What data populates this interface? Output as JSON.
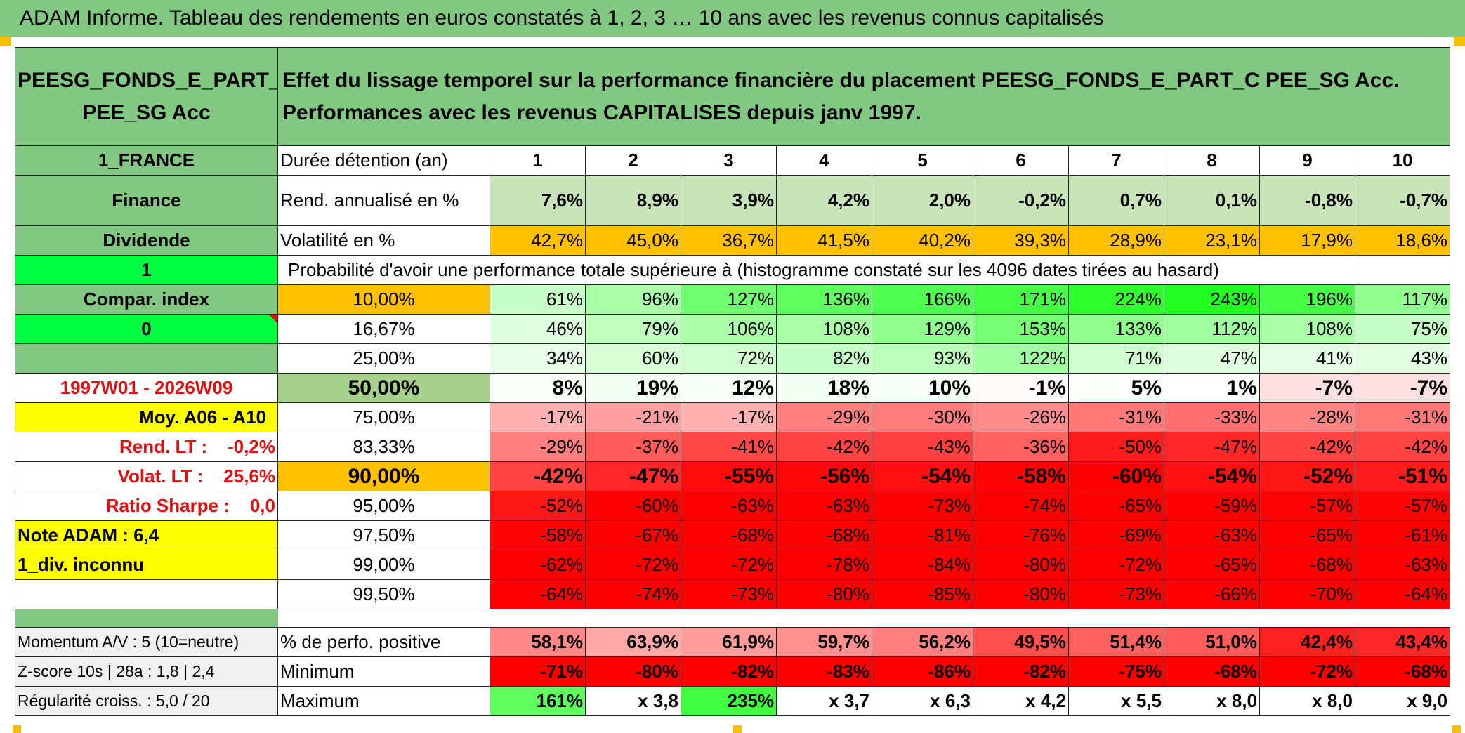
{
  "title": "ADAM Informe. Tableau des rendements en euros constatés à 1, 2, 3 … 10 ans avec les revenus connus capitalisés",
  "header": {
    "fund": "PEESG_FONDS_E_PART_C PEE_SG Acc",
    "description": "Effet du lissage temporel sur la performance financière du placement PEESG_FONDS_E_PART_C PEE_SG Acc. Performances avec les revenus CAPITALISES depuis janv 1997."
  },
  "left": {
    "country": "1_FRANCE",
    "sector": "Finance",
    "dividend": "Dividende",
    "one": "1",
    "compar": "Compar. index",
    "zero": "0",
    "period": "1997W01 - 2026W09",
    "moy": "Moy. A06 - A10",
    "rend_lt": "Rend. LT :    -0,2%",
    "volat_lt": "Volat. LT :    25,6%",
    "sharpe": "Ratio Sharpe :    0,0",
    "note": "Note ADAM : 6,4",
    "div": "1_div. inconnu",
    "momentum": "Momentum A/V : 5 (10=neutre)",
    "zscore": "Z-score 10s | 28a : 1,8 | 2,4",
    "regularite": "Régularité croiss. : 5,0 / 20"
  },
  "labels": {
    "duree": "Durée détention (an)",
    "rend": "Rend. annualisé en %",
    "volat": "Volatilité en %",
    "proba": "Probabilité d'avoir une performance totale supérieure à (histogramme constaté sur les 4096 dates tirées au hasard)",
    "pos": "% de perfo. positive",
    "min": "Minimum",
    "max": "Maximum"
  },
  "years": [
    "1",
    "2",
    "3",
    "4",
    "5",
    "6",
    "7",
    "8",
    "9",
    "10"
  ],
  "rend": [
    "7,6%",
    "8,9%",
    "3,9%",
    "4,2%",
    "2,0%",
    "-0,2%",
    "0,7%",
    "0,1%",
    "-0,8%",
    "-0,7%"
  ],
  "volat": [
    "42,7%",
    "45,0%",
    "36,7%",
    "41,5%",
    "40,2%",
    "39,3%",
    "28,9%",
    "23,1%",
    "17,9%",
    "18,6%"
  ],
  "volat_colors": [
    "#ffc000",
    "#ffc000",
    "#ffc000",
    "#ffc000",
    "#ffc000",
    "#ffc000",
    "#ffc000",
    "#ffc000",
    "#ffc000",
    "#ffc000"
  ],
  "rend_colors": [
    "#c8e4b8",
    "#c8e4b8",
    "#c8e4b8",
    "#c8e4b8",
    "#c8e4b8",
    "#c8e4b8",
    "#c8e4b8",
    "#c8e4b8",
    "#c8e4b8",
    "#c8e4b8"
  ],
  "percentiles": [
    {
      "label": "10,00%",
      "label_bg": "#ffc000",
      "bold": false,
      "values": [
        "61%",
        "96%",
        "127%",
        "136%",
        "166%",
        "171%",
        "224%",
        "243%",
        "196%",
        "117%"
      ],
      "colors": [
        "#c8ffc8",
        "#a8ffa8",
        "#70ff70",
        "#60ff60",
        "#50ff50",
        "#48ff48",
        "#30ff30",
        "#20ff20",
        "#48ff48",
        "#90ff90"
      ]
    },
    {
      "label": "16,67%",
      "label_bg": "#ffffff",
      "bold": false,
      "values": [
        "46%",
        "79%",
        "106%",
        "108%",
        "129%",
        "153%",
        "133%",
        "112%",
        "108%",
        "75%"
      ],
      "colors": [
        "#e0ffe0",
        "#c0ffc0",
        "#a8ffa8",
        "#a8ffa8",
        "#90ff90",
        "#78ff78",
        "#90ff90",
        "#a0ffa0",
        "#a8ffa8",
        "#c8ffc8"
      ]
    },
    {
      "label": "25,00%",
      "label_bg": "#ffffff",
      "bold": false,
      "values": [
        "34%",
        "60%",
        "72%",
        "82%",
        "93%",
        "122%",
        "71%",
        "47%",
        "41%",
        "43%"
      ],
      "colors": [
        "#eaffea",
        "#d8ffd8",
        "#d0ffd0",
        "#c8ffc8",
        "#bcffbc",
        "#a0ffa0",
        "#d0ffd0",
        "#e0ffe0",
        "#e6ffe6",
        "#e4ffe4"
      ]
    },
    {
      "label": "50,00%",
      "label_bg": "#a8d08d",
      "bold": true,
      "values": [
        "8%",
        "19%",
        "12%",
        "18%",
        "10%",
        "-1%",
        "5%",
        "1%",
        "-7%",
        "-7%"
      ],
      "colors": [
        "#fafffa",
        "#f4fff4",
        "#f8fff8",
        "#f4fff4",
        "#f8fff8",
        "#fffafa",
        "#fcfffc",
        "#fefffe",
        "#ffe0e0",
        "#ffe0e0"
      ]
    },
    {
      "label": "75,00%",
      "label_bg": "#ffffff",
      "bold": false,
      "values": [
        "-17%",
        "-21%",
        "-17%",
        "-29%",
        "-30%",
        "-26%",
        "-31%",
        "-33%",
        "-28%",
        "-31%"
      ],
      "colors": [
        "#ffb0b0",
        "#ffa0a0",
        "#ffb0b0",
        "#ff8080",
        "#ff7c7c",
        "#ff8c8c",
        "#ff7878",
        "#ff7070",
        "#ff8484",
        "#ff7878"
      ]
    },
    {
      "label": "83,33%",
      "label_bg": "#ffffff",
      "bold": false,
      "values": [
        "-29%",
        "-37%",
        "-41%",
        "-42%",
        "-43%",
        "-36%",
        "-50%",
        "-47%",
        "-42%",
        "-42%"
      ],
      "colors": [
        "#ff8080",
        "#ff5c5c",
        "#ff4848",
        "#ff4444",
        "#ff4040",
        "#ff6060",
        "#ff1c1c",
        "#ff2828",
        "#ff4444",
        "#ff4444"
      ]
    },
    {
      "label": "90,00%",
      "label_bg": "#ffc000",
      "bold": true,
      "values": [
        "-42%",
        "-47%",
        "-55%",
        "-56%",
        "-54%",
        "-58%",
        "-60%",
        "-54%",
        "-52%",
        "-51%"
      ],
      "colors": [
        "#ff4444",
        "#ff2828",
        "#ff0c0c",
        "#ff0808",
        "#ff1010",
        "#ff0404",
        "#ff0000",
        "#ff1010",
        "#ff1818",
        "#ff1c1c"
      ]
    },
    {
      "label": "95,00%",
      "label_bg": "#ffffff",
      "bold": false,
      "values": [
        "-52%",
        "-60%",
        "-63%",
        "-63%",
        "-73%",
        "-74%",
        "-65%",
        "-59%",
        "-57%",
        "-57%"
      ],
      "colors": [
        "#ff1818",
        "#ff0000",
        "#ff0000",
        "#ff0000",
        "#ff0000",
        "#ff0000",
        "#ff0000",
        "#ff0000",
        "#ff0404",
        "#ff0404"
      ]
    },
    {
      "label": "97,50%",
      "label_bg": "#ffffff",
      "bold": false,
      "values": [
        "-58%",
        "-67%",
        "-68%",
        "-68%",
        "-81%",
        "-76%",
        "-69%",
        "-63%",
        "-65%",
        "-61%"
      ],
      "colors": [
        "#ff0404",
        "#ff0000",
        "#ff0000",
        "#ff0000",
        "#ff0000",
        "#ff0000",
        "#ff0000",
        "#ff0000",
        "#ff0000",
        "#ff0000"
      ]
    },
    {
      "label": "99,00%",
      "label_bg": "#ffffff",
      "bold": false,
      "values": [
        "-62%",
        "-72%",
        "-72%",
        "-78%",
        "-84%",
        "-80%",
        "-72%",
        "-65%",
        "-68%",
        "-63%"
      ],
      "colors": [
        "#ff0000",
        "#ff0000",
        "#ff0000",
        "#ff0000",
        "#ff0000",
        "#ff0000",
        "#ff0000",
        "#ff0000",
        "#ff0000",
        "#ff0000"
      ]
    },
    {
      "label": "99,50%",
      "label_bg": "#ffffff",
      "bold": false,
      "values": [
        "-64%",
        "-74%",
        "-73%",
        "-80%",
        "-85%",
        "-80%",
        "-73%",
        "-66%",
        "-70%",
        "-64%"
      ],
      "colors": [
        "#ff0000",
        "#ff0000",
        "#ff0000",
        "#ff0000",
        "#ff0000",
        "#ff0000",
        "#ff0000",
        "#ff0000",
        "#ff0000",
        "#ff0000"
      ]
    }
  ],
  "pos": [
    "58,1%",
    "63,9%",
    "61,9%",
    "59,7%",
    "56,2%",
    "49,5%",
    "51,4%",
    "51,0%",
    "42,4%",
    "43,4%"
  ],
  "pos_colors": [
    "#ff8888",
    "#ffa8a8",
    "#ff9c9c",
    "#ff9090",
    "#ff8080",
    "#ff5050",
    "#ff6060",
    "#ff5c5c",
    "#ff2020",
    "#ff2828"
  ],
  "min": [
    "-71%",
    "-80%",
    "-82%",
    "-83%",
    "-86%",
    "-82%",
    "-75%",
    "-68%",
    "-72%",
    "-68%"
  ],
  "min_colors": [
    "#ff0000",
    "#ff0000",
    "#ff0000",
    "#ff0000",
    "#ff0000",
    "#ff0000",
    "#ff0000",
    "#ff0000",
    "#ff0000",
    "#ff0000"
  ],
  "max": [
    "161%",
    "x 3,8",
    "235%",
    "x 3,7",
    "x 6,3",
    "x 4,2",
    "x 5,5",
    "x 8,0",
    "x 8,0",
    "x 9,0"
  ],
  "max_colors": [
    "#60ff60",
    "#ffffff",
    "#40ff40",
    "#ffffff",
    "#ffffff",
    "#ffffff",
    "#ffffff",
    "#ffffff",
    "#ffffff",
    "#ffffff"
  ]
}
